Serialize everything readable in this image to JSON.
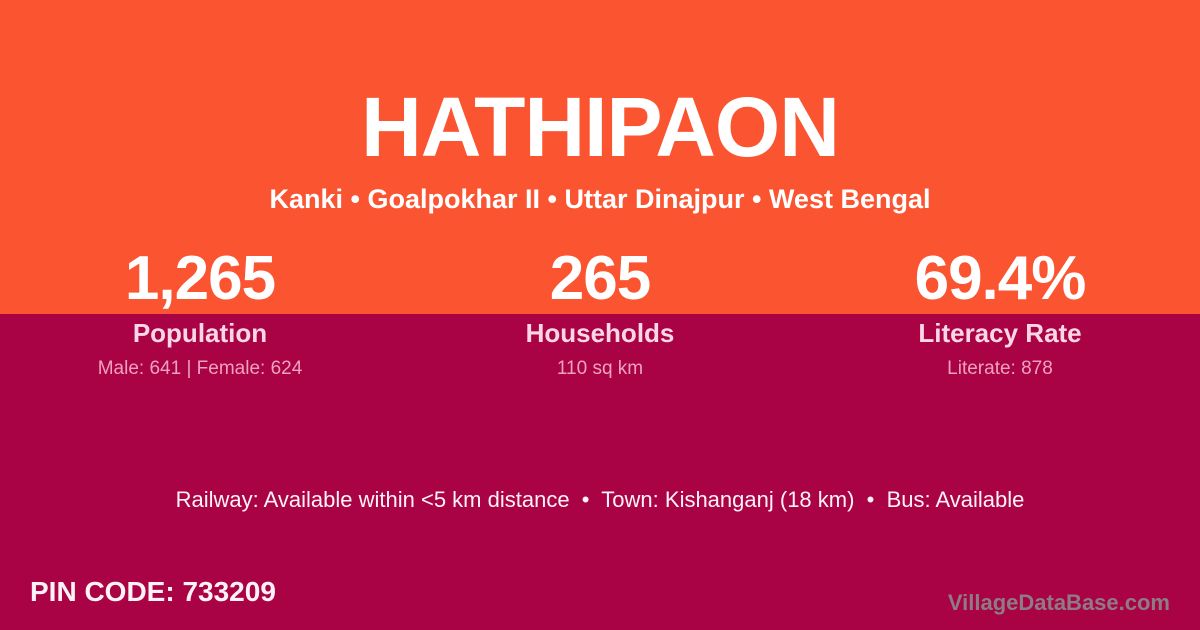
{
  "card": {
    "title": "HATHIPAON",
    "subtitle": "Kanki • Goalpokhar II • Uttar Dinajpur • West Bengal",
    "stats": [
      {
        "value": "1,265",
        "label": "Population",
        "detail": "Male: 641 | Female: 624"
      },
      {
        "value": "265",
        "label": "Households",
        "detail": "110 sq km"
      },
      {
        "value": "69.4%",
        "label": "Literacy Rate",
        "detail": "Literate: 878"
      }
    ],
    "transport_line": "Railway: Available within <5 km distance  •  Town: Kishanganj (18 km)  •  Bus: Available",
    "pin_code_label": "PIN CODE: 733209",
    "watermark": "VillageDataBase.com",
    "colors": {
      "top_bg": "#FB5431",
      "bottom_bg": "#AA0345",
      "title_text": "#FFFFFF",
      "label_text": "#FAD7E6",
      "detail_text": "#F0A1C0",
      "watermark_text": "#8E7B85"
    }
  }
}
